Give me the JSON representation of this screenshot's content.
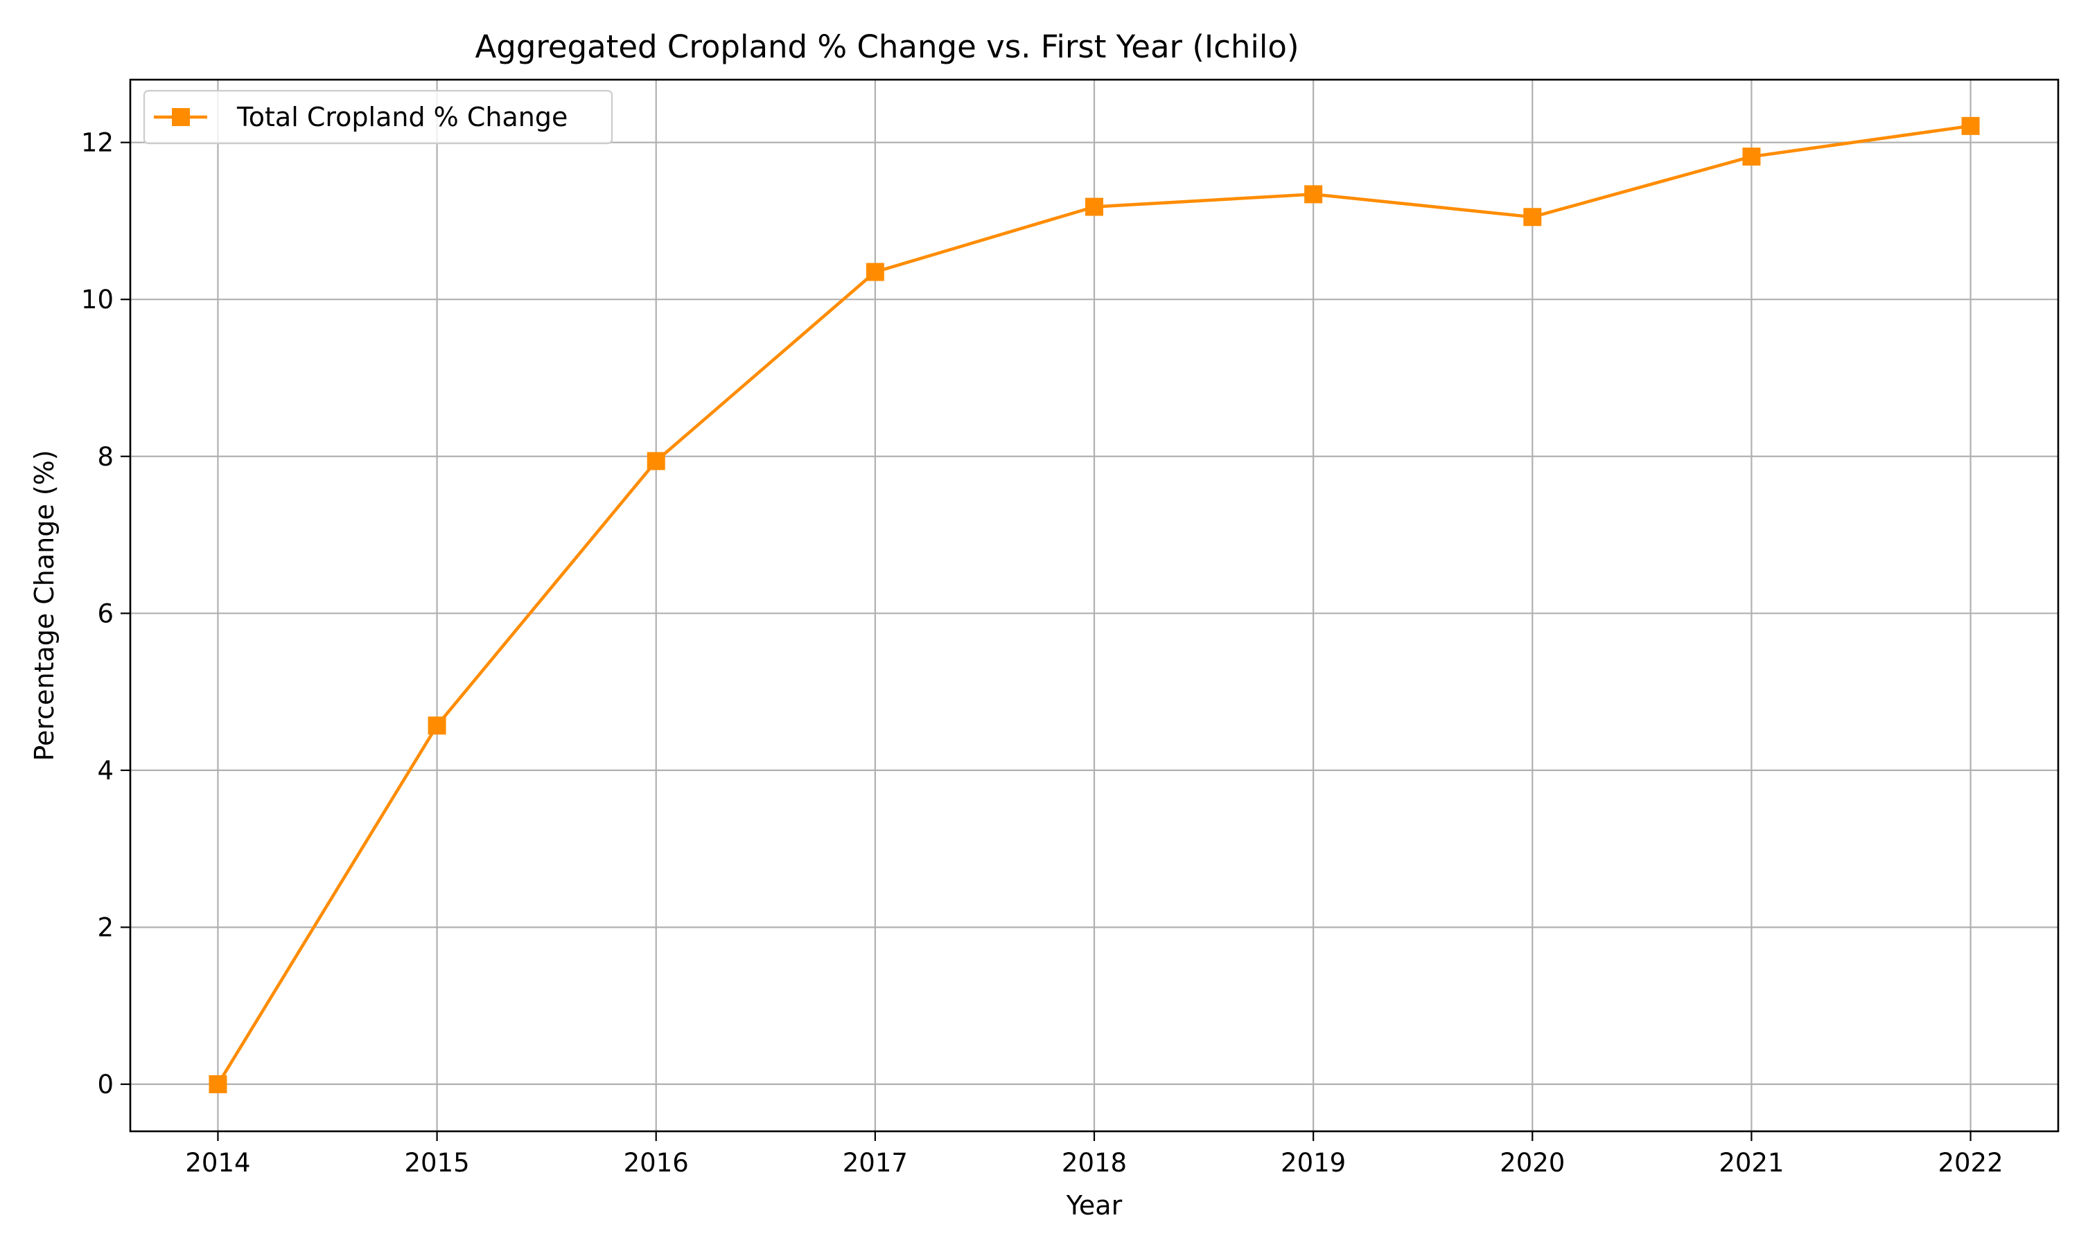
{
  "chart_data": {
    "type": "line",
    "title": "Aggregated Cropland % Change vs. First Year (Ichilo)",
    "xlabel": "Year",
    "ylabel": "Percentage Change (%)",
    "x": [
      2014,
      2015,
      2016,
      2017,
      2018,
      2019,
      2020,
      2021,
      2022
    ],
    "x_tick_labels": [
      "2014",
      "2015",
      "2016",
      "2017",
      "2018",
      "2019",
      "2020",
      "2021",
      "2022"
    ],
    "xlim": [
      2013.6,
      2022.4
    ],
    "ylim": [
      -0.6,
      12.8
    ],
    "y_ticks": [
      0,
      2,
      4,
      6,
      8,
      10,
      12
    ],
    "y_tick_labels": [
      "0",
      "2",
      "4",
      "6",
      "8",
      "10",
      "12"
    ],
    "grid": true,
    "legend_position": "top-left",
    "series": [
      {
        "name": "Total Cropland % Change",
        "color": "#ff8c00",
        "marker": "square",
        "values": [
          0.0,
          4.57,
          7.94,
          10.35,
          11.18,
          11.34,
          11.05,
          11.82,
          12.21
        ]
      }
    ]
  }
}
